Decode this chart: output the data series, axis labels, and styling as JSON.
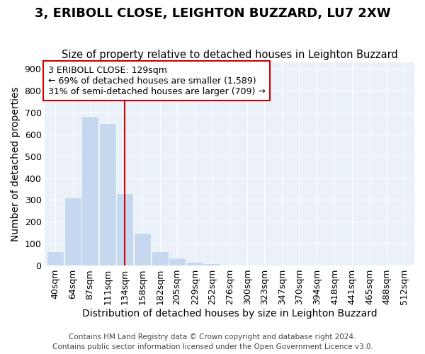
{
  "title": "3, ERIBOLL CLOSE, LEIGHTON BUZZARD, LU7 2XW",
  "subtitle": "Size of property relative to detached houses in Leighton Buzzard",
  "xlabel": "Distribution of detached houses by size in Leighton Buzzard",
  "ylabel": "Number of detached properties",
  "footnote1": "Contains HM Land Registry data © Crown copyright and database right 2024.",
  "footnote2": "Contains public sector information licensed under the Open Government Licence v3.0.",
  "annotation_line1": "3 ERIBOLL CLOSE: 129sqm",
  "annotation_line2": "← 69% of detached houses are smaller (1,589)",
  "annotation_line3": "31% of semi-detached houses are larger (709) →",
  "categories": [
    40,
    64,
    87,
    111,
    134,
    158,
    182,
    205,
    229,
    252,
    276,
    300,
    323,
    347,
    370,
    394,
    418,
    441,
    465,
    488,
    512
  ],
  "cat_labels": [
    "40sqm",
    "64sqm",
    "87sqm",
    "111sqm",
    "134sqm",
    "158sqm",
    "182sqm",
    "205sqm",
    "229sqm",
    "252sqm",
    "276sqm",
    "300sqm",
    "323sqm",
    "347sqm",
    "370sqm",
    "394sqm",
    "418sqm",
    "441sqm",
    "465sqm",
    "488sqm",
    "512sqm"
  ],
  "values": [
    65,
    310,
    685,
    650,
    330,
    150,
    65,
    35,
    15,
    10,
    5,
    2,
    0,
    0,
    0,
    0,
    0,
    0,
    3,
    0,
    2
  ],
  "bar_color": "#c5d8f0",
  "bar_edge_color": "#c5d8f0",
  "vline_color": "#cc0000",
  "vline_x": 134,
  "ylim": [
    0,
    930
  ],
  "yticks": [
    0,
    100,
    200,
    300,
    400,
    500,
    600,
    700,
    800,
    900
  ],
  "annotation_box_edge_color": "#cc0000",
  "annotation_bg": "#ffffff",
  "title_fontsize": 13,
  "subtitle_fontsize": 10.5,
  "axis_label_fontsize": 10,
  "tick_fontsize": 9,
  "annotation_fontsize": 9,
  "footnote_fontsize": 7.5,
  "bg_color": "#ffffff",
  "plot_bg_color": "#eaf1f8",
  "grid_color": "#ffffff"
}
